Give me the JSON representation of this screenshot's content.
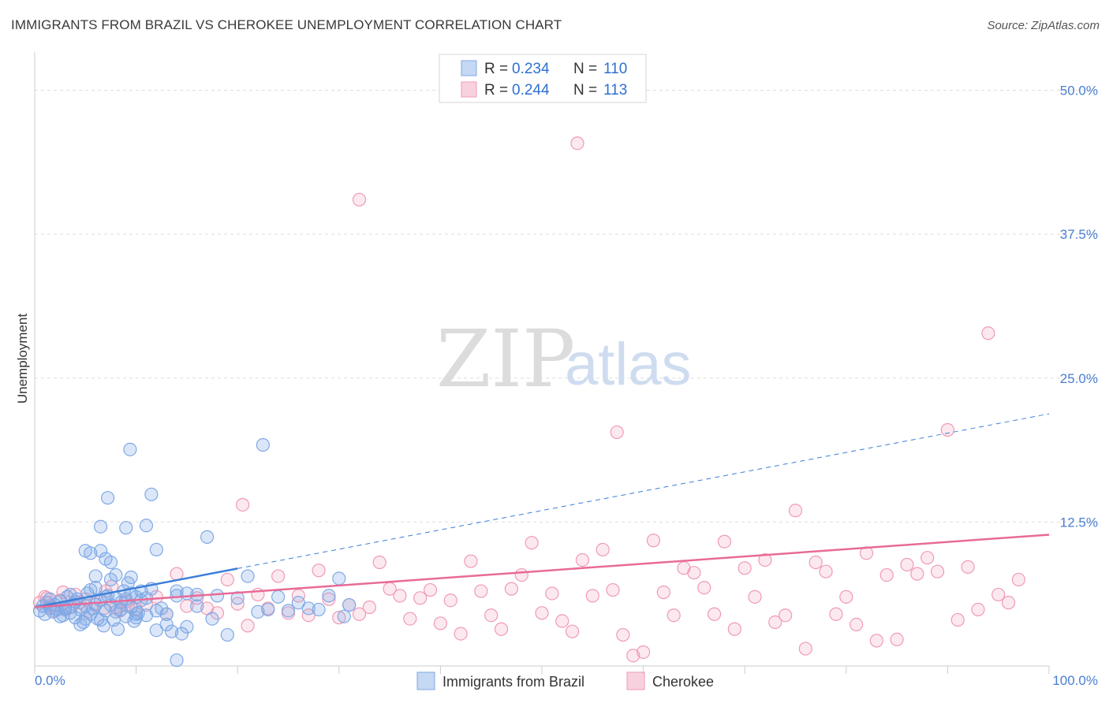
{
  "header": {
    "title": "IMMIGRANTS FROM BRAZIL VS CHEROKEE UNEMPLOYMENT CORRELATION CHART",
    "source": "Source: ZipAtlas.com"
  },
  "watermark": {
    "zip": "ZIP",
    "atlas": "atlas"
  },
  "colors": {
    "blue": "#7fa9e6",
    "blue_fill": "rgba(127,169,230,0.28)",
    "blue_line": "#3d7fd8",
    "pink": "#f09ab5",
    "pink_fill": "rgba(240,154,181,0.22)",
    "pink_line": "#e86b97",
    "tick_text": "#4a7ed0",
    "grid": "#dddddd"
  },
  "legend": {
    "rows": [
      {
        "r_label": "R =",
        "r_value": "0.234",
        "n_label": "N =",
        "n_value": "110"
      },
      {
        "r_label": "R =",
        "r_value": "0.244",
        "n_label": "N =",
        "n_value": "113"
      }
    ]
  },
  "chart_data": {
    "type": "scatter",
    "title": "IMMIGRANTS FROM BRAZIL VS CHEROKEE UNEMPLOYMENT CORRELATION CHART",
    "xlabel": "",
    "ylabel": "Unemployment",
    "xlim": [
      0,
      100
    ],
    "ylim": [
      0,
      52.5
    ],
    "x_tick_labels": [
      "0.0%",
      "100.0%"
    ],
    "y_ticks": [
      12.5,
      25.0,
      37.5,
      50.0
    ],
    "y_tick_labels": [
      "12.5%",
      "25.0%",
      "37.5%",
      "50.0%"
    ],
    "series": [
      {
        "name": "Immigrants from Brazil",
        "r": 0.234,
        "n": 110,
        "trend": {
          "x0": 0,
          "y0": 5.1,
          "x1": 100,
          "y1": 21.9,
          "solid_until_x": 20
        },
        "points": [
          [
            0.5,
            4.8
          ],
          [
            0.8,
            5.2
          ],
          [
            1,
            4.5
          ],
          [
            1.2,
            5.5
          ],
          [
            1.5,
            5.0
          ],
          [
            1.8,
            4.7
          ],
          [
            2,
            5.3
          ],
          [
            2.2,
            4.9
          ],
          [
            2.5,
            5.6
          ],
          [
            2.8,
            4.4
          ],
          [
            3,
            5.1
          ],
          [
            3.2,
            6.0
          ],
          [
            3.5,
            4.6
          ],
          [
            3.8,
            5.4
          ],
          [
            4,
            4.2
          ],
          [
            4.2,
            5.8
          ],
          [
            4.5,
            4.9
          ],
          [
            4.8,
            3.8
          ],
          [
            5,
            5.2
          ],
          [
            5.2,
            6.3
          ],
          [
            5.5,
            4.5
          ],
          [
            5.8,
            5.0
          ],
          [
            6,
            6.8
          ],
          [
            6.2,
            4.1
          ],
          [
            6.5,
            5.7
          ],
          [
            6.8,
            3.5
          ],
          [
            7,
            4.8
          ],
          [
            7.2,
            6.1
          ],
          [
            7.5,
            5.3
          ],
          [
            7.8,
            4.0
          ],
          [
            8,
            5.9
          ],
          [
            8.2,
            3.2
          ],
          [
            8.5,
            5.5
          ],
          [
            8.8,
            6.5
          ],
          [
            9,
            4.3
          ],
          [
            9.2,
            7.2
          ],
          [
            9.5,
            5.1
          ],
          [
            9.8,
            3.9
          ],
          [
            10,
            6.0
          ],
          [
            10.2,
            4.6
          ],
          [
            1.5,
            5.8
          ],
          [
            2.5,
            4.3
          ],
          [
            3.5,
            6.2
          ],
          [
            4.5,
            3.6
          ],
          [
            5.5,
            6.6
          ],
          [
            6.5,
            4.0
          ],
          [
            7.5,
            7.5
          ],
          [
            8.5,
            4.9
          ],
          [
            9.5,
            6.3
          ],
          [
            10.5,
            5.7
          ],
          [
            11,
            4.4
          ],
          [
            11.5,
            6.7
          ],
          [
            12,
            3.1
          ],
          [
            12.5,
            5.0
          ],
          [
            13,
            4.5
          ],
          [
            13.5,
            3.0
          ],
          [
            14,
            6.1
          ],
          [
            14.5,
            2.8
          ],
          [
            15,
            3.4
          ],
          [
            16,
            5.2
          ],
          [
            3,
            4.9
          ],
          [
            4,
            5.6
          ],
          [
            5,
            4.1
          ],
          [
            6,
            5.3
          ],
          [
            7,
            6.0
          ],
          [
            8,
            4.7
          ],
          [
            9,
            5.8
          ],
          [
            10,
            4.2
          ],
          [
            11,
            5.9
          ],
          [
            12,
            4.8
          ],
          [
            5,
            10.0
          ],
          [
            5.5,
            9.8
          ],
          [
            6,
            7.8
          ],
          [
            6.5,
            10.0
          ],
          [
            7,
            9.3
          ],
          [
            7.5,
            9.0
          ],
          [
            8,
            7.9
          ],
          [
            9,
            12.0
          ],
          [
            9.5,
            7.7
          ],
          [
            10,
            4.5
          ],
          [
            6.5,
            12.1
          ],
          [
            7.2,
            14.6
          ],
          [
            9.4,
            18.8
          ],
          [
            10.5,
            6.5
          ],
          [
            11,
            12.2
          ],
          [
            11.5,
            14.9
          ],
          [
            12,
            10.1
          ],
          [
            13,
            3.6
          ],
          [
            14,
            0.5
          ],
          [
            14,
            6.5
          ],
          [
            15,
            6.3
          ],
          [
            16,
            6.2
          ],
          [
            17,
            11.2
          ],
          [
            17.5,
            4.1
          ],
          [
            18,
            6.1
          ],
          [
            19,
            2.7
          ],
          [
            20,
            5.9
          ],
          [
            21,
            7.8
          ],
          [
            22,
            4.7
          ],
          [
            22.5,
            19.2
          ],
          [
            23,
            4.9
          ],
          [
            24,
            6.0
          ],
          [
            25,
            4.8
          ],
          [
            26,
            5.5
          ],
          [
            27,
            5.0
          ],
          [
            28,
            4.9
          ],
          [
            29,
            6.1
          ],
          [
            30,
            7.6
          ],
          [
            30.5,
            4.3
          ],
          [
            31,
            5.3
          ]
        ]
      },
      {
        "name": "Cherokee",
        "r": 0.244,
        "n": 113,
        "trend": {
          "x0": 0,
          "y0": 5.1,
          "x1": 100,
          "y1": 11.4
        },
        "points": [
          [
            0.5,
            5.5
          ],
          [
            1,
            6.0
          ],
          [
            1.5,
            5.2
          ],
          [
            2,
            4.8
          ],
          [
            2.5,
            5.7
          ],
          [
            3,
            5.0
          ],
          [
            4,
            6.2
          ],
          [
            5,
            5.8
          ],
          [
            6,
            5.4
          ],
          [
            7,
            6.5
          ],
          [
            8,
            5.1
          ],
          [
            9,
            5.6
          ],
          [
            10,
            4.9
          ],
          [
            11,
            5.3
          ],
          [
            12,
            6.0
          ],
          [
            13,
            4.5
          ],
          [
            14,
            8.0
          ],
          [
            15,
            5.2
          ],
          [
            16,
            5.9
          ],
          [
            17,
            5.0
          ],
          [
            18,
            4.6
          ],
          [
            19,
            7.5
          ],
          [
            20,
            5.4
          ],
          [
            21,
            3.5
          ],
          [
            22,
            6.2
          ],
          [
            23,
            5.0
          ],
          [
            24,
            7.8
          ],
          [
            25,
            4.6
          ],
          [
            26,
            6.1
          ],
          [
            27,
            4.4
          ],
          [
            28,
            8.3
          ],
          [
            29,
            5.8
          ],
          [
            30,
            4.2
          ],
          [
            31,
            5.3
          ],
          [
            32,
            4.5
          ],
          [
            33,
            5.1
          ],
          [
            34,
            9.0
          ],
          [
            35,
            6.7
          ],
          [
            36,
            6.1
          ],
          [
            37,
            4.1
          ],
          [
            38,
            5.9
          ],
          [
            39,
            6.6
          ],
          [
            40,
            3.7
          ],
          [
            41,
            5.7
          ],
          [
            42,
            2.8
          ],
          [
            43,
            9.1
          ],
          [
            44,
            6.5
          ],
          [
            45,
            4.4
          ],
          [
            46,
            3.2
          ],
          [
            47,
            6.7
          ],
          [
            48,
            7.9
          ],
          [
            49,
            10.7
          ],
          [
            50,
            4.6
          ],
          [
            51,
            6.3
          ],
          [
            52,
            3.9
          ],
          [
            53,
            3.0
          ],
          [
            54,
            9.2
          ],
          [
            55,
            6.1
          ],
          [
            56,
            10.1
          ],
          [
            57,
            6.6
          ],
          [
            58,
            2.7
          ],
          [
            59,
            0.9
          ],
          [
            60,
            1.2
          ],
          [
            61,
            10.9
          ],
          [
            62,
            6.4
          ],
          [
            63,
            4.4
          ],
          [
            64,
            8.5
          ],
          [
            65,
            8.1
          ],
          [
            66,
            6.8
          ],
          [
            67,
            4.5
          ],
          [
            68,
            10.8
          ],
          [
            69,
            3.2
          ],
          [
            70,
            8.5
          ],
          [
            71,
            6.0
          ],
          [
            72,
            9.2
          ],
          [
            73,
            3.8
          ],
          [
            74,
            4.4
          ],
          [
            75,
            13.5
          ],
          [
            76,
            1.5
          ],
          [
            77,
            9.0
          ],
          [
            78,
            8.2
          ],
          [
            79,
            4.5
          ],
          [
            80,
            6.0
          ],
          [
            81,
            3.6
          ],
          [
            82,
            9.8
          ],
          [
            83,
            2.2
          ],
          [
            84,
            7.9
          ],
          [
            85,
            2.3
          ],
          [
            86,
            8.8
          ],
          [
            87,
            8.0
          ],
          [
            88,
            9.4
          ],
          [
            89,
            8.2
          ],
          [
            90,
            20.5
          ],
          [
            91,
            4.0
          ],
          [
            92,
            8.6
          ],
          [
            93,
            4.9
          ],
          [
            94,
            28.9
          ],
          [
            95,
            6.2
          ],
          [
            96,
            5.5
          ],
          [
            97,
            7.5
          ],
          [
            32,
            40.5
          ],
          [
            53.5,
            45.4
          ],
          [
            20.5,
            14.0
          ],
          [
            57.4,
            20.3
          ],
          [
            1.2,
            5.9
          ],
          [
            2.8,
            6.4
          ],
          [
            3.6,
            5.1
          ],
          [
            4.4,
            5.5
          ],
          [
            5.2,
            4.7
          ],
          [
            6.8,
            5.0
          ],
          [
            7.6,
            6.9
          ],
          [
            8.4,
            4.8
          ],
          [
            9.2,
            5.2
          ]
        ]
      }
    ],
    "legend_position": "top-center"
  },
  "bottom_legend": {
    "items": [
      {
        "label": "Immigrants from Brazil"
      },
      {
        "label": "Cherokee"
      }
    ]
  }
}
